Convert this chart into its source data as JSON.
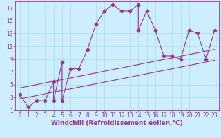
{
  "xlabel": "Windchill (Refroidissement éolien,°C)",
  "bg_color": "#cceeff",
  "line_color": "#993399",
  "curve1_x": [
    0,
    1,
    2,
    3,
    4,
    4,
    5,
    5,
    6,
    7,
    8,
    9,
    10,
    11,
    12,
    13,
    14,
    14,
    15,
    16,
    17,
    18,
    19,
    20,
    21,
    22,
    23
  ],
  "curve1_y": [
    3.5,
    1.5,
    2.5,
    2.5,
    5.5,
    2.5,
    8.5,
    2.5,
    7.5,
    7.5,
    10.5,
    14.5,
    16.5,
    17.5,
    16.5,
    16.5,
    17.5,
    13.5,
    16.5,
    13.5,
    9.5,
    9.5,
    9.0,
    13.5,
    13.0,
    9.0,
    13.5
  ],
  "curve2_x": [
    0,
    23
  ],
  "curve2_y": [
    2.8,
    8.8
  ],
  "curve3_x": [
    0,
    23
  ],
  "curve3_y": [
    4.5,
    10.5
  ],
  "xlim": [
    -0.5,
    23.5
  ],
  "ylim": [
    1,
    18
  ],
  "xticks": [
    0,
    1,
    2,
    3,
    4,
    5,
    6,
    7,
    8,
    9,
    10,
    11,
    12,
    13,
    14,
    15,
    16,
    17,
    18,
    19,
    20,
    21,
    22,
    23
  ],
  "yticks": [
    1,
    3,
    5,
    7,
    9,
    11,
    13,
    15,
    17
  ],
  "grid_color": "#aadddd",
  "marker": "D",
  "markersize": 2.5,
  "linewidth": 0.8,
  "tick_fontsize": 5.5,
  "xlabel_fontsize": 6.5
}
